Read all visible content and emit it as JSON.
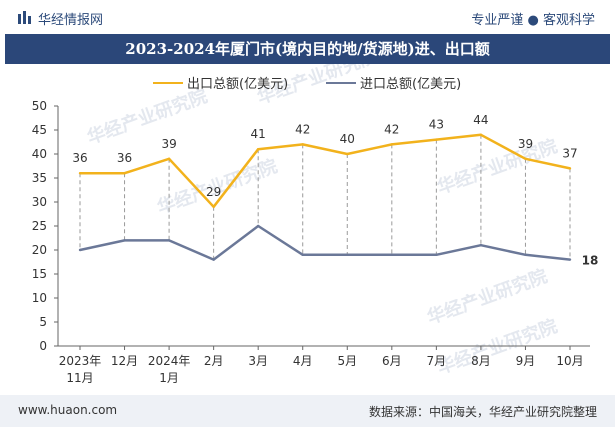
{
  "header": {
    "brand": "华经情报网",
    "tagline": "专业严谨 ● 客观科学",
    "title": "2023-2024年厦门市(境内目的地/货源地)进、出口额"
  },
  "footer": {
    "site": "www.huaon.com",
    "source": "数据来源：中国海关，华经产业研究院整理"
  },
  "watermark": "华经产业研究院",
  "colors": {
    "export": "#f2b21c",
    "import": "#6b7898",
    "title_bg": "#2b4779",
    "footer_bg": "#eef1f6"
  },
  "icons": {
    "logo": "bar-chart-icon"
  },
  "chart_data": {
    "type": "line",
    "title": "",
    "xlabel": "",
    "ylabel": "",
    "ylim": [
      0,
      50
    ],
    "yticks": [
      0,
      5,
      10,
      15,
      20,
      25,
      30,
      35,
      40,
      45,
      50
    ],
    "categories": [
      [
        "2023年",
        "11月"
      ],
      [
        "12月"
      ],
      [
        "2024年",
        "1月"
      ],
      [
        "2月"
      ],
      [
        "3月"
      ],
      [
        "4月"
      ],
      [
        "5月"
      ],
      [
        "6月"
      ],
      [
        "7月"
      ],
      [
        "8月"
      ],
      [
        "9月"
      ],
      [
        "10月"
      ]
    ],
    "legend_position": "top-left",
    "grid": false,
    "series": [
      {
        "name": "出口总额(亿美元)",
        "color": "#f2b21c",
        "labeled": true,
        "values": [
          36,
          36,
          39,
          29,
          41,
          42,
          40,
          42,
          43,
          44,
          39,
          37
        ]
      },
      {
        "name": "进口总额(亿美元)",
        "color": "#6b7898",
        "labeled": "last",
        "values": [
          20,
          22,
          22,
          18,
          25,
          19,
          19,
          19,
          19,
          21,
          19,
          18
        ]
      }
    ]
  }
}
